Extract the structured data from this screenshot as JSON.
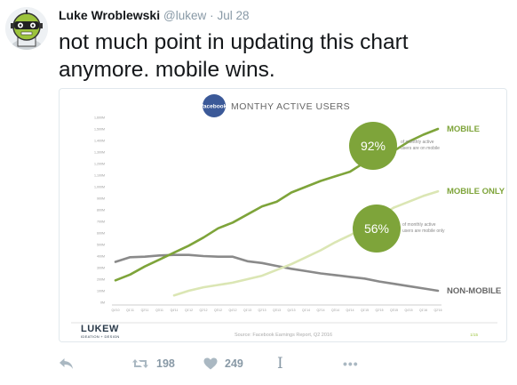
{
  "tweet": {
    "author_name": "Luke Wroblewski",
    "handle": "@lukew",
    "separator": "·",
    "date": "Jul 28",
    "text": "not much point in updating this chart anymore. mobile wins."
  },
  "actions": {
    "retweet_count": "198",
    "like_count": "249",
    "dm_glyph": "I",
    "more_glyph": "•••"
  },
  "colors": {
    "mobile": "#7ea43a",
    "mobile_only": "#dbe6b4",
    "non_mobile": "#8a8a8a",
    "facebook_blue": "#3b5998",
    "text_grey": "#8899a6"
  },
  "chart_data": {
    "type": "line",
    "title": "MONTHY ACTIVE USERS",
    "logo_text": "facebook",
    "source": "Source: Facebook Earnings Report, Q2 2016",
    "brand": "LUKEW",
    "brand_sub": "IDEATION + DESIGN",
    "y_ticks": [
      "1,600M",
      "1,500M",
      "1,400M",
      "1,300M",
      "1,200M",
      "1,100M",
      "1,000M",
      "900M",
      "800M",
      "700M",
      "600M",
      "500M",
      "400M",
      "300M",
      "200M",
      "100M",
      "0M"
    ],
    "ylim": [
      0,
      1600
    ],
    "x_ticks": [
      "Q4'10",
      "Q1'11",
      "Q2'11",
      "Q3'11",
      "Q4'11",
      "Q1'12",
      "Q2'12",
      "Q3'12",
      "Q4'12",
      "Q1'13",
      "Q2'13",
      "Q3'13",
      "Q4'13",
      "Q1'14",
      "Q2'14",
      "Q3'14",
      "Q4'14",
      "Q1'15",
      "Q2'15",
      "Q3'15",
      "Q4'15",
      "Q1'16",
      "Q2'16"
    ],
    "series": [
      {
        "name": "MOBILE",
        "start_index": 0,
        "values": [
          190,
          240,
          310,
          370,
          430,
          490,
          560,
          640,
          690,
          760,
          830,
          870,
          950,
          1000,
          1050,
          1090,
          1130,
          1210,
          1270,
          1310,
          1390,
          1450,
          1500
        ]
      },
      {
        "name": "MOBILE ONLY",
        "start_index": 4,
        "values": [
          60,
          100,
          130,
          150,
          170,
          200,
          230,
          280,
          330,
          390,
          450,
          520,
          580,
          650,
          740,
          820,
          870,
          920,
          960
        ]
      },
      {
        "name": "NON-MOBILE",
        "start_index": 0,
        "values": [
          350,
          390,
          395,
          405,
          410,
          410,
          400,
          395,
          395,
          355,
          340,
          315,
          290,
          270,
          250,
          235,
          220,
          205,
          180,
          160,
          140,
          120,
          100
        ]
      }
    ],
    "annotations": [
      {
        "value": "92%",
        "text_line1": "of monthly active",
        "text_line2": "users are on mobile"
      },
      {
        "value": "56%",
        "text_line1": "of monthly active",
        "text_line2": "users are mobile only"
      }
    ],
    "page_number": "1/15"
  }
}
